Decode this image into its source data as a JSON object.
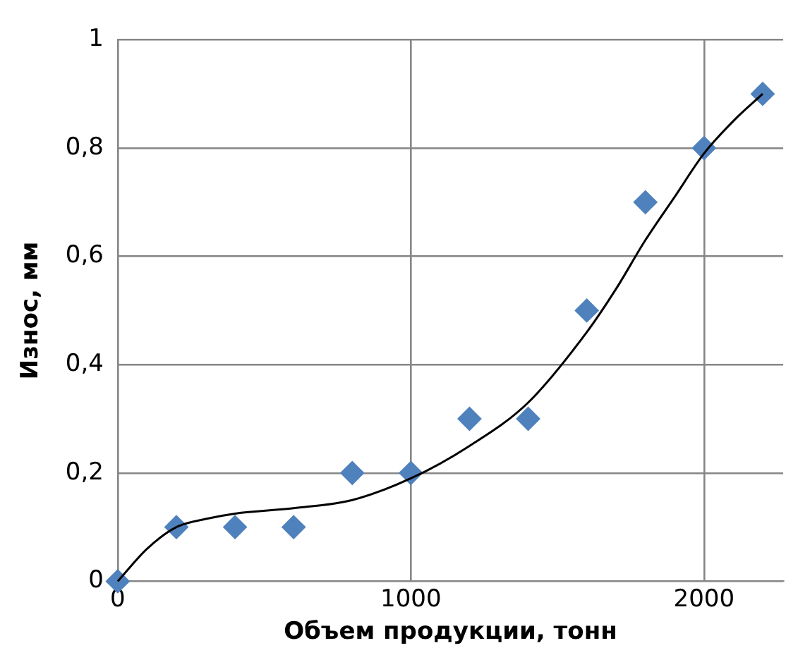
{
  "chart_data": {
    "type": "scatter",
    "xlabel": "Объем продукции, тонн",
    "ylabel": "Износ, мм",
    "xlim": [
      0,
      2270
    ],
    "ylim": [
      0,
      1
    ],
    "xticks": [
      0,
      1000,
      2000
    ],
    "yticks": [
      0,
      {
        "value": 0.2,
        "label": "0,2"
      },
      {
        "value": 0.4,
        "label": "0,4"
      },
      {
        "value": 0.6,
        "label": "0,6"
      },
      {
        "value": 0.8,
        "label": "0,8"
      },
      1
    ],
    "grid": true,
    "legend": false,
    "marker": "diamond",
    "series": [
      {
        "type": "scatter",
        "color": "#4f81bd",
        "x": [
          0,
          200,
          400,
          600,
          800,
          1000,
          1200,
          1400,
          1600,
          1800,
          2000,
          2200
        ],
        "values": [
          0,
          0.1,
          0.1,
          0.1,
          0.2,
          0.2,
          0.3,
          0.3,
          0.5,
          0.7,
          0.8,
          0.9
        ]
      },
      {
        "type": "line",
        "color": "#000000",
        "marker": "none",
        "line_style": "solid",
        "x": [
          0,
          100,
          200,
          300,
          400,
          600,
          800,
          1000,
          1200,
          1400,
          1600,
          1700,
          1800,
          1900,
          2000,
          2100,
          2200
        ],
        "values": [
          0,
          0.06,
          0.1,
          0.115,
          0.125,
          0.135,
          0.15,
          0.19,
          0.25,
          0.33,
          0.46,
          0.54,
          0.63,
          0.71,
          0.79,
          0.85,
          0.9
        ]
      }
    ]
  }
}
